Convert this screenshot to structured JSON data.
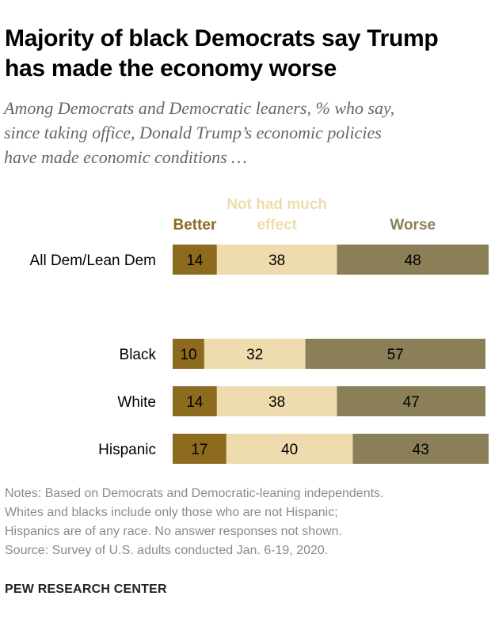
{
  "title_lines": [
    "Majority of black Democrats say Trump",
    "has made the economy worse"
  ],
  "subtitle_lines": [
    "Among Democrats and Democratic leaners, % who say,",
    "since taking office, Donald Trump’s economic policies",
    "have made economic conditions …"
  ],
  "notes_lines": [
    "Notes: Based on Democrats and Democratic-leaning independents.",
    "Whites and blacks include only those who are not Hispanic;",
    "Hispanics are of any race. No answer responses not shown.",
    "Source: Survey of U.S. adults conducted Jan. 6-19, 2020."
  ],
  "footer": "PEW RESEARCH CENTER",
  "chart_data": {
    "type": "bar",
    "orientation": "horizontal",
    "stacked": true,
    "categories": [
      "All Dem/Lean Dem",
      "Black",
      "White",
      "Hispanic"
    ],
    "series": [
      {
        "name": "Better",
        "name_lines": [
          "Better"
        ],
        "color": "#8c6a1e",
        "label_color": "#8c6a1e",
        "values": [
          14,
          10,
          14,
          17
        ]
      },
      {
        "name": "Not had much effect",
        "name_lines": [
          "Not had much",
          "effect"
        ],
        "color": "#efdcae",
        "label_color": "#efdcae",
        "values": [
          38,
          32,
          38,
          40
        ]
      },
      {
        "name": "Worse",
        "name_lines": [
          "Worse"
        ],
        "color": "#8b7f57",
        "label_color": "#8b7f57",
        "values": [
          48,
          57,
          47,
          43
        ]
      }
    ],
    "xlim": [
      0,
      100
    ],
    "legend": "top",
    "grid": false
  }
}
